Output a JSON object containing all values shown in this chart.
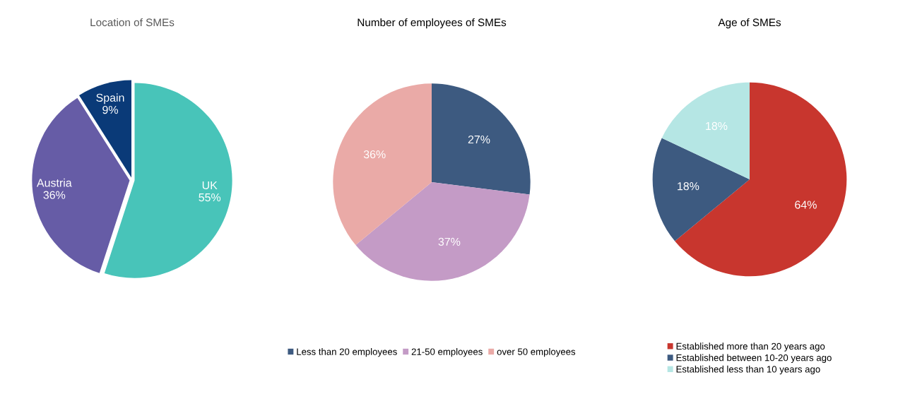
{
  "chart_data": [
    {
      "type": "pie",
      "title": "Location of SMEs",
      "categories": [
        "UK",
        "Austria",
        "Spain"
      ],
      "values": [
        55,
        36,
        9
      ],
      "colors": [
        "#48c4b9",
        "#665ca6",
        "#0a3a78"
      ],
      "value_labels": [
        "55%",
        "36%",
        "9%"
      ],
      "legend": false
    },
    {
      "type": "pie",
      "title": "Number of employees of SMEs",
      "categories": [
        "Less than 20 employees",
        "21-50 employees",
        "over 50 employees"
      ],
      "values": [
        27,
        37,
        36
      ],
      "colors": [
        "#3d5a80",
        "#c49bc6",
        "#eaaaa7"
      ],
      "value_labels": [
        "27%",
        "37%",
        "36%"
      ],
      "legend": "bottom"
    },
    {
      "type": "pie",
      "title": "Age of SMEs",
      "categories": [
        "Established more than 20 years ago",
        "Established between 10-20 years ago",
        "Established less than 10 years ago"
      ],
      "values": [
        64,
        18,
        18
      ],
      "colors": [
        "#c8362e",
        "#3d5a80",
        "#b5e6e4"
      ],
      "value_labels": [
        "64%",
        "18%",
        "18%"
      ],
      "legend": "bottom"
    }
  ]
}
